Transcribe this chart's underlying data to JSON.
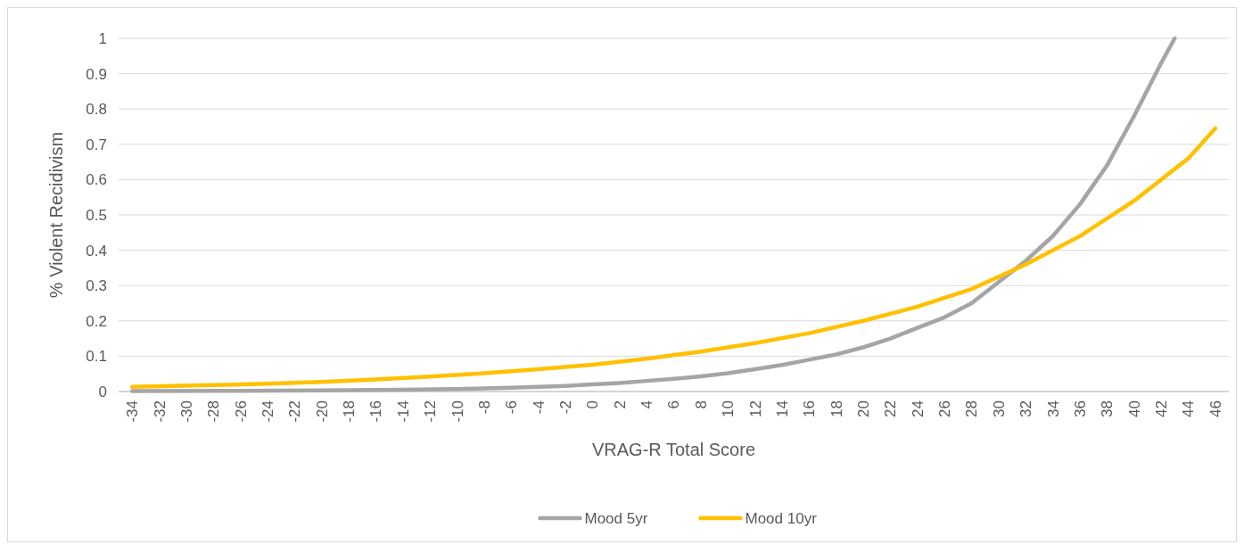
{
  "chart_data": {
    "type": "line",
    "xlabel": "VRAG-R Total Score",
    "ylabel": "% Violent Recidivism",
    "xlim": [
      -35,
      47
    ],
    "xticks": [
      -34,
      -32,
      -30,
      -28,
      -26,
      -24,
      -22,
      -20,
      -18,
      -16,
      -14,
      -12,
      -10,
      -8,
      -6,
      -4,
      -2,
      0,
      2,
      4,
      6,
      8,
      10,
      12,
      14,
      16,
      18,
      20,
      22,
      24,
      26,
      28,
      30,
      32,
      34,
      36,
      38,
      40,
      42,
      44,
      46
    ],
    "ylim": [
      0,
      1
    ],
    "yticks": [
      0,
      0.1,
      0.2,
      0.3,
      0.4,
      0.5,
      0.6,
      0.7,
      0.8,
      0.9,
      1
    ],
    "grid": "y",
    "legend": "bottom",
    "marker": "none",
    "line_style": "solid",
    "series": [
      {
        "name": "Mood 5yr",
        "color": "#a5a5a5",
        "x": [
          -34,
          -26,
          -20,
          -14,
          -10,
          -8,
          -6,
          -4,
          -2,
          0,
          2,
          4,
          6,
          8,
          10,
          12,
          14,
          16,
          18,
          20,
          22,
          24,
          26,
          28,
          30,
          32,
          34,
          36,
          38,
          40,
          42,
          43
        ],
        "values": [
          0.001,
          0.002,
          0.003,
          0.005,
          0.007,
          0.009,
          0.011,
          0.013,
          0.016,
          0.02,
          0.024,
          0.03,
          0.036,
          0.043,
          0.052,
          0.063,
          0.075,
          0.09,
          0.105,
          0.125,
          0.15,
          0.18,
          0.21,
          0.25,
          0.31,
          0.37,
          0.44,
          0.53,
          0.64,
          0.78,
          0.93,
          1
        ]
      },
      {
        "name": "Mood 10yr",
        "color": "#ffc000",
        "x": [
          -34,
          -28,
          -24,
          -20,
          -16,
          -12,
          -8,
          -4,
          0,
          4,
          8,
          12,
          16,
          20,
          24,
          28,
          32,
          36,
          40,
          44,
          46
        ],
        "values": [
          0.013,
          0.018,
          0.022,
          0.027,
          0.034,
          0.042,
          0.052,
          0.063,
          0.076,
          0.093,
          0.113,
          0.137,
          0.165,
          0.2,
          0.24,
          0.29,
          0.36,
          0.44,
          0.54,
          0.66,
          0.745
        ]
      }
    ]
  }
}
